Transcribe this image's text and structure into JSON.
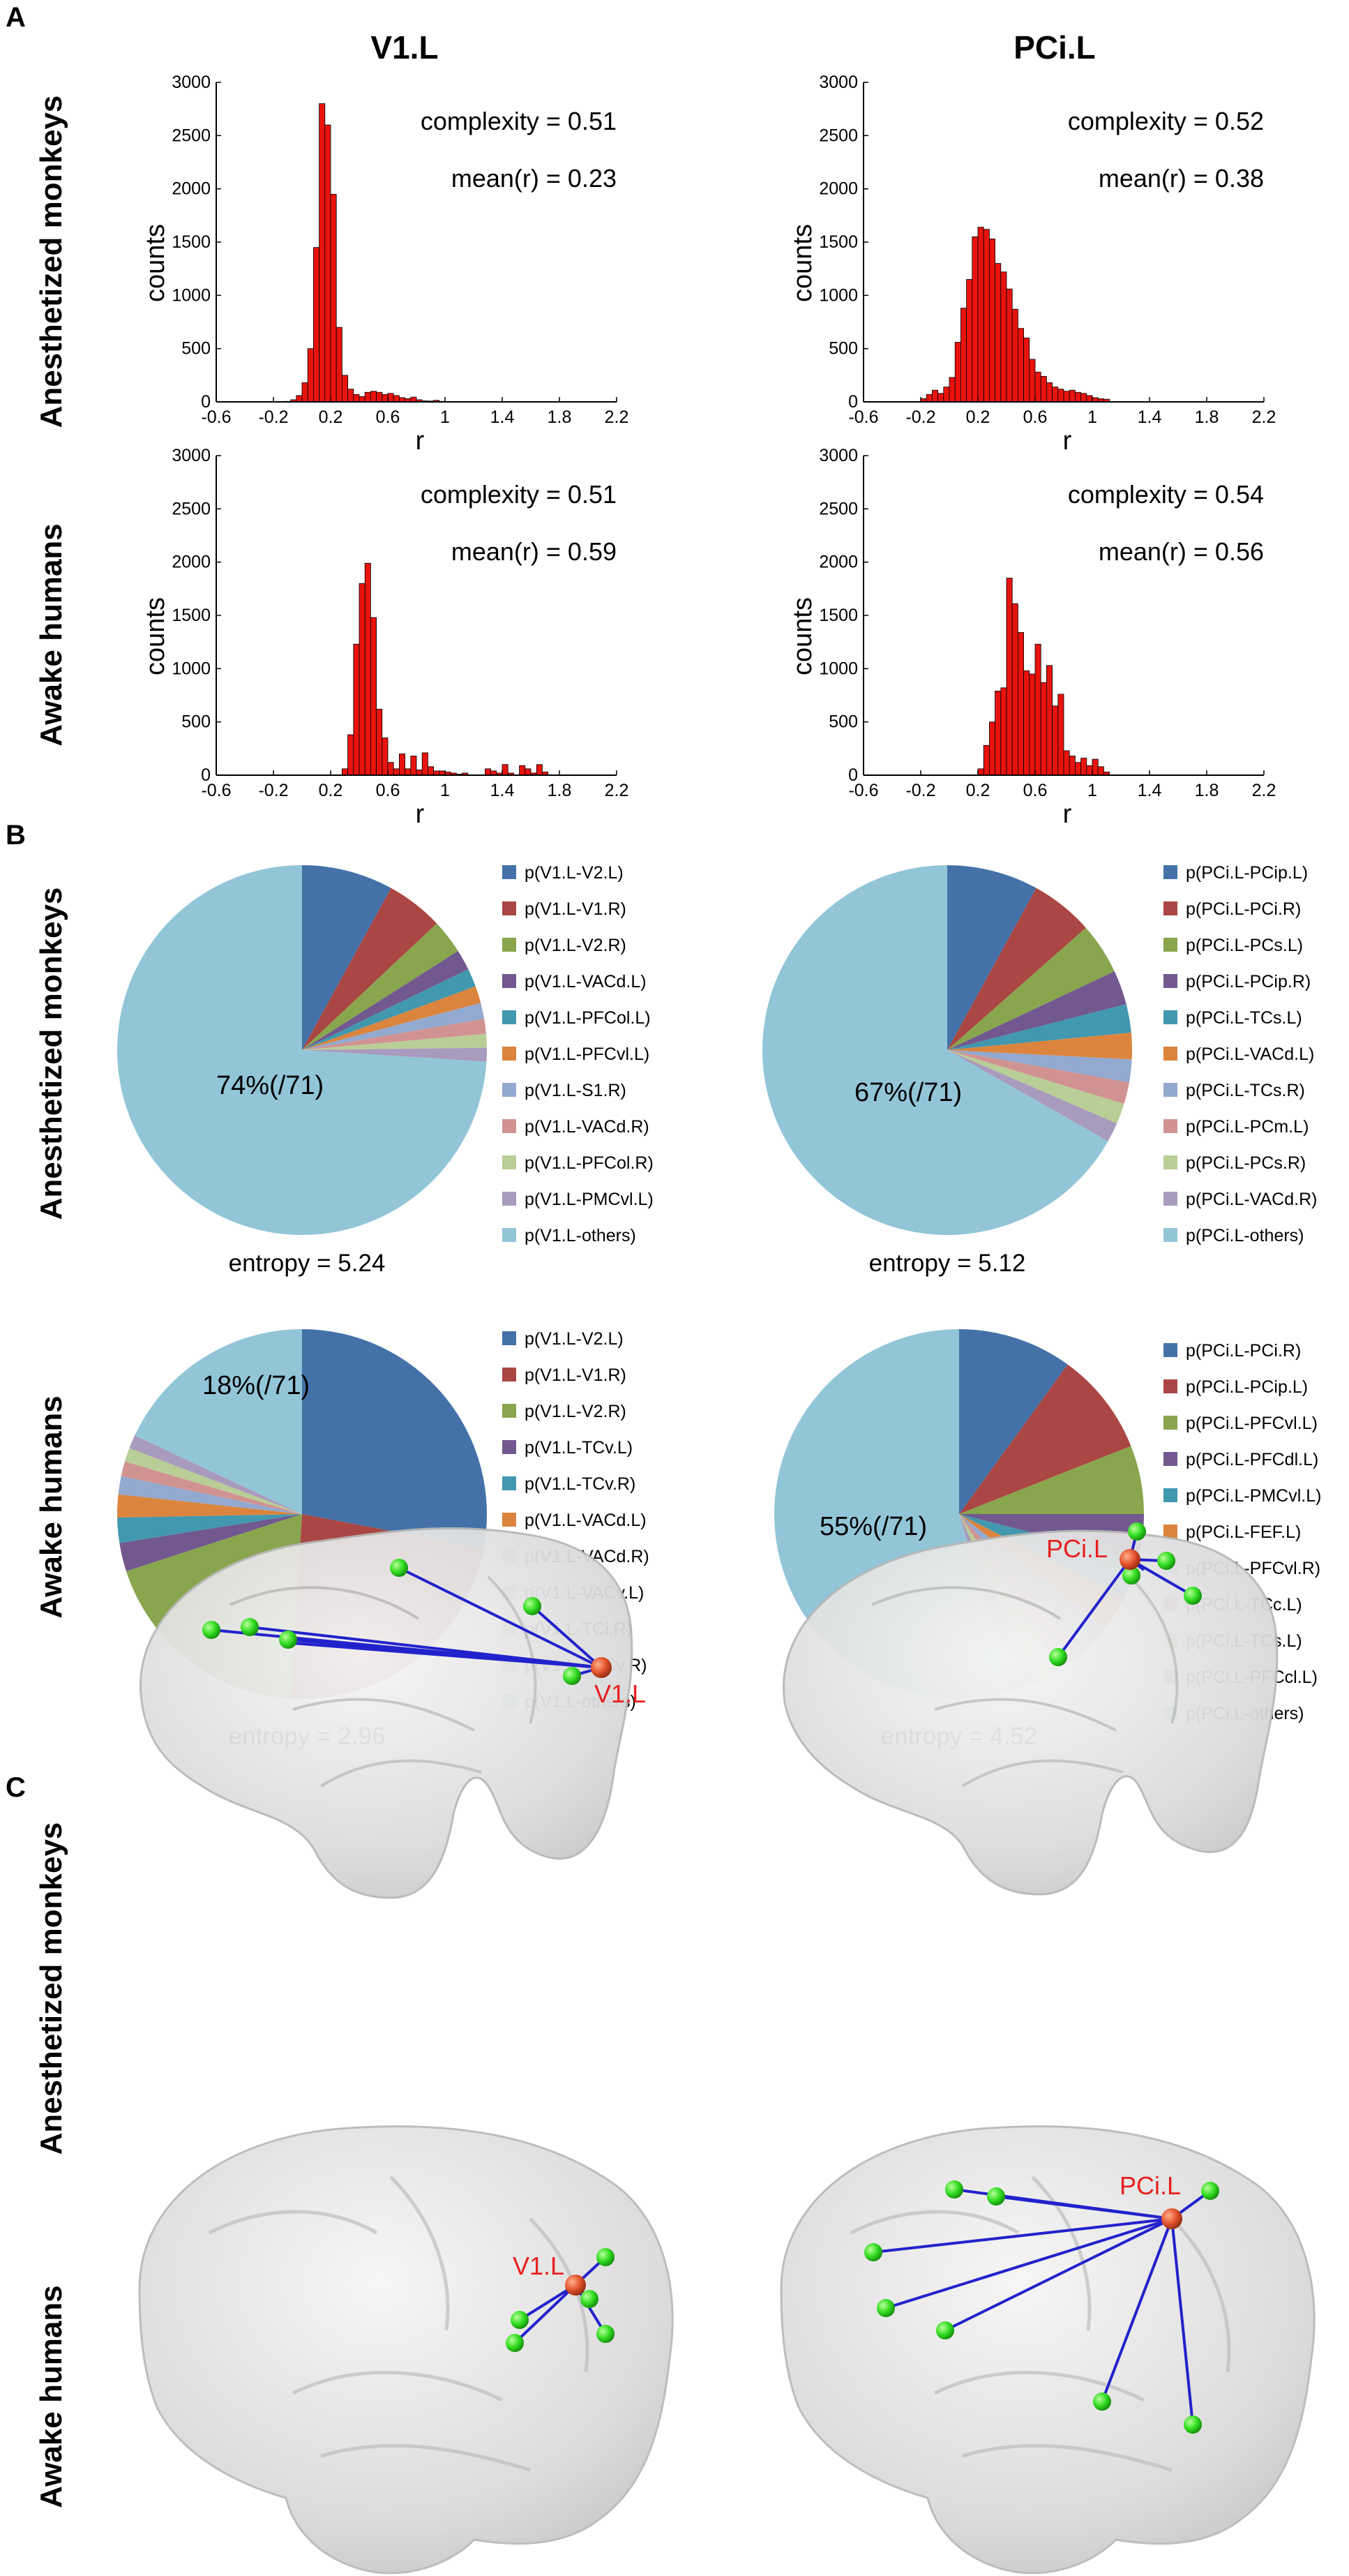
{
  "panels": [
    {
      "letter": "A"
    },
    {
      "letter": "B"
    },
    {
      "letter": "C"
    }
  ],
  "columns": [
    "V1.L",
    "PCi.L"
  ],
  "row_labels": {
    "A": [
      "Anesthetized monkeys",
      "Awake humans"
    ],
    "B": [
      "Anesthetized monkeys",
      "Awake humans"
    ],
    "C": [
      "Anesthetized monkeys",
      "Awake humans"
    ]
  },
  "chart_data": [
    {
      "type": "bar",
      "panel": "A",
      "row": 0,
      "col": 0,
      "title": "V1.L",
      "xlabel": "r",
      "ylabel": "counts",
      "xlim": [
        -0.6,
        2.2
      ],
      "ylim": [
        0,
        3000
      ],
      "xticks": [
        "-0.6",
        "-0.2",
        "0.2",
        "0.6",
        "1",
        "1.4",
        "1.8",
        "2.2"
      ],
      "yticks": [
        "0",
        "500",
        "1000",
        "1500",
        "2000",
        "2500",
        "3000"
      ],
      "annotations": [
        "complexity = 0.51",
        "mean(r) = 0.23"
      ],
      "bin_start": -0.2,
      "bin_width": 0.04,
      "values": [
        0,
        0,
        5,
        20,
        60,
        180,
        500,
        1450,
        2800,
        2600,
        1950,
        700,
        250,
        120,
        70,
        50,
        90,
        100,
        90,
        70,
        80,
        60,
        40,
        30,
        45,
        20,
        10,
        8,
        15,
        5
      ]
    },
    {
      "type": "bar",
      "panel": "A",
      "row": 0,
      "col": 1,
      "title": "PCi.L",
      "xlabel": "r",
      "ylabel": "counts",
      "xlim": [
        -0.6,
        2.2
      ],
      "ylim": [
        0,
        3000
      ],
      "xticks": [
        "-0.6",
        "-0.2",
        "0.2",
        "0.6",
        "1",
        "1.4",
        "1.8",
        "2.2"
      ],
      "yticks": [
        "0",
        "500",
        "1000",
        "1500",
        "2000",
        "2500",
        "3000"
      ],
      "annotations": [
        "complexity = 0.52",
        "mean(r) = 0.38"
      ],
      "bin_start": -0.2,
      "bin_width": 0.04,
      "values": [
        30,
        70,
        110,
        80,
        140,
        230,
        560,
        880,
        1150,
        1550,
        1640,
        1620,
        1530,
        1300,
        1220,
        1060,
        870,
        690,
        600,
        400,
        280,
        240,
        180,
        140,
        120,
        100,
        110,
        90,
        80,
        60,
        40,
        30,
        25
      ]
    },
    {
      "type": "bar",
      "panel": "A",
      "row": 1,
      "col": 0,
      "title": "V1.L",
      "xlabel": "r",
      "ylabel": "counts",
      "xlim": [
        -0.6,
        2.2
      ],
      "ylim": [
        0,
        3000
      ],
      "xticks": [
        "-0.6",
        "-0.2",
        "0.2",
        "0.6",
        "1",
        "1.4",
        "1.8",
        "2.2"
      ],
      "yticks": [
        "0",
        "500",
        "1000",
        "1500",
        "2000",
        "2500",
        "3000"
      ],
      "annotations": [
        "complexity = 0.51",
        "mean(r) = 0.59"
      ],
      "bin_start": 0.28,
      "bin_width": 0.04,
      "values": [
        60,
        380,
        1230,
        1800,
        1990,
        1480,
        620,
        350,
        120,
        60,
        200,
        60,
        180,
        50,
        210,
        80,
        40,
        40,
        30,
        20,
        10,
        20,
        0,
        0,
        0,
        60,
        40,
        20,
        100,
        20,
        0,
        90,
        60,
        20,
        100,
        30
      ]
    },
    {
      "type": "bar",
      "panel": "A",
      "row": 1,
      "col": 1,
      "title": "PCi.L",
      "xlabel": "r",
      "ylabel": "counts",
      "xlim": [
        -0.6,
        2.2
      ],
      "ylim": [
        0,
        3000
      ],
      "xticks": [
        "-0.6",
        "-0.2",
        "0.2",
        "0.6",
        "1",
        "1.4",
        "1.8",
        "2.2"
      ],
      "yticks": [
        "0",
        "500",
        "1000",
        "1500",
        "2000",
        "2500",
        "3000"
      ],
      "annotations": [
        "complexity = 0.54",
        "mean(r) = 0.56"
      ],
      "bin_start": 0.2,
      "bin_width": 0.04,
      "values": [
        60,
        280,
        500,
        790,
        820,
        1850,
        1610,
        1340,
        980,
        950,
        1230,
        870,
        1030,
        650,
        760,
        230,
        180,
        120,
        160,
        90,
        150,
        80,
        30
      ]
    },
    {
      "type": "pie",
      "panel": "B",
      "row": 0,
      "col": 0,
      "center_label": "74%(/71)",
      "caption": "entropy = 5.24",
      "slices": [
        {
          "label": "p(V1.L-V2.L)",
          "value": 8.0,
          "color": "#4472A8"
        },
        {
          "label": "p(V1.L-V1.R)",
          "value": 5.0,
          "color": "#AA4643"
        },
        {
          "label": "p(V1.L-V2.R)",
          "value": 3.0,
          "color": "#89A54E"
        },
        {
          "label": "p(V1.L-VACd.L)",
          "value": 1.8,
          "color": "#71588F"
        },
        {
          "label": "p(V1.L-PFCol.L)",
          "value": 1.6,
          "color": "#4198AF"
        },
        {
          "label": "p(V1.L-PFCvl.L)",
          "value": 1.5,
          "color": "#DB843D"
        },
        {
          "label": "p(V1.L-S1.R)",
          "value": 1.4,
          "color": "#93A9CF"
        },
        {
          "label": "p(V1.L-VACd.R)",
          "value": 1.3,
          "color": "#D19392"
        },
        {
          "label": "p(V1.L-PFCol.R)",
          "value": 1.2,
          "color": "#B9CD96"
        },
        {
          "label": "p(V1.L-PMCvl.L)",
          "value": 1.2,
          "color": "#A99BBD"
        },
        {
          "label": "p(V1.L-others)",
          "value": 74.0,
          "color": "#92C5D8"
        }
      ]
    },
    {
      "type": "pie",
      "panel": "B",
      "row": 0,
      "col": 1,
      "center_label": "67%(/71)",
      "caption": "entropy = 5.12",
      "slices": [
        {
          "label": "p(PCi.L-PCip.L)",
          "value": 8.0,
          "color": "#4472A8"
        },
        {
          "label": "p(PCi.L-PCi.R)",
          "value": 5.5,
          "color": "#AA4643"
        },
        {
          "label": "p(PCi.L-PCs.L)",
          "value": 4.5,
          "color": "#89A54E"
        },
        {
          "label": "p(PCi.L-PCip.R)",
          "value": 3.0,
          "color": "#71588F"
        },
        {
          "label": "p(PCi.L-TCs.L)",
          "value": 2.5,
          "color": "#4198AF"
        },
        {
          "label": "p(PCi.L-VACd.L)",
          "value": 2.3,
          "color": "#DB843D"
        },
        {
          "label": "p(PCi.L-TCs.R)",
          "value": 2.0,
          "color": "#93A9CF"
        },
        {
          "label": "p(PCi.L-PCm.L)",
          "value": 1.9,
          "color": "#D19392"
        },
        {
          "label": "p(PCi.L-PCs.R)",
          "value": 1.8,
          "color": "#B9CD96"
        },
        {
          "label": "p(PCi.L-VACd.R)",
          "value": 1.7,
          "color": "#A99BBD"
        },
        {
          "label": "p(PCi.L-others)",
          "value": 66.8,
          "color": "#92C5D8"
        }
      ]
    },
    {
      "type": "pie",
      "panel": "B",
      "row": 1,
      "col": 0,
      "center_label": "18%(/71)",
      "caption": "entropy = 2.96",
      "slices": [
        {
          "label": "p(V1.L-V2.L)",
          "value": 28.0,
          "color": "#4472A8"
        },
        {
          "label": "p(V1.L-V1.R)",
          "value": 23.0,
          "color": "#AA4643"
        },
        {
          "label": "p(V1.L-V2.R)",
          "value": 19.0,
          "color": "#89A54E"
        },
        {
          "label": "p(V1.L-TCv.L)",
          "value": 2.5,
          "color": "#71588F"
        },
        {
          "label": "p(V1.L-TCv.R)",
          "value": 2.2,
          "color": "#4198AF"
        },
        {
          "label": "p(V1.L-VACd.L)",
          "value": 2.0,
          "color": "#DB843D"
        },
        {
          "label": "p(V1.L-VACd.R)",
          "value": 1.6,
          "color": "#93A9CF"
        },
        {
          "label": "p(V1.L-VACv.L)",
          "value": 1.3,
          "color": "#D19392"
        },
        {
          "label": "p(V1.L-TCi.R)",
          "value": 1.2,
          "color": "#B9CD96"
        },
        {
          "label": "p(V1.L-VACv.R)",
          "value": 1.2,
          "color": "#A99BBD"
        },
        {
          "label": "p(V1.L-others)",
          "value": 18.0,
          "color": "#92C5D8"
        }
      ]
    },
    {
      "type": "pie",
      "panel": "B",
      "row": 1,
      "col": 1,
      "center_label": "55%(/71)",
      "caption": "entropy = 4.52",
      "slices": [
        {
          "label": "p(PCi.L-PCi.R)",
          "value": 10.0,
          "color": "#4472A8"
        },
        {
          "label": "p(PCi.L-PCip.L)",
          "value": 9.0,
          "color": "#AA4643"
        },
        {
          "label": "p(PCi.L-PFCvl.L)",
          "value": 6.0,
          "color": "#89A54E"
        },
        {
          "label": "p(PCi.L-PFCdl.L)",
          "value": 4.0,
          "color": "#71588F"
        },
        {
          "label": "p(PCi.L-PMCvl.L)",
          "value": 3.5,
          "color": "#4198AF"
        },
        {
          "label": "p(PCi.L-FEF.L)",
          "value": 3.0,
          "color": "#DB843D"
        },
        {
          "label": "p(PCi.L-PFCvl.R)",
          "value": 2.8,
          "color": "#93A9CF"
        },
        {
          "label": "p(PCi.L-TCc.L)",
          "value": 2.5,
          "color": "#D19392"
        },
        {
          "label": "p(PCi.L-TCs.L)",
          "value": 2.4,
          "color": "#B9CD96"
        },
        {
          "label": "p(PCi.L-PFCcl.L)",
          "value": 2.3,
          "color": "#A99BBD"
        },
        {
          "label": "p(PCi.L-others)",
          "value": 54.5,
          "color": "#92C5D8"
        }
      ]
    }
  ],
  "brain_panels": [
    {
      "row": 0,
      "col": 0,
      "subject": "monkey",
      "seed_label": "V1.L",
      "links": 7
    },
    {
      "row": 0,
      "col": 1,
      "subject": "monkey",
      "seed_label": "PCi.L",
      "links": 6
    },
    {
      "row": 1,
      "col": 0,
      "subject": "human",
      "seed_label": "V1.L",
      "links": 5
    },
    {
      "row": 1,
      "col": 1,
      "subject": "human",
      "seed_label": "PCi.L",
      "links": 8
    }
  ],
  "colors": {
    "bar": "#E8130E",
    "seed_node": "#E4532F",
    "node": "#33DD22",
    "edge": "#2222CC",
    "seed_text": "#E82020"
  }
}
